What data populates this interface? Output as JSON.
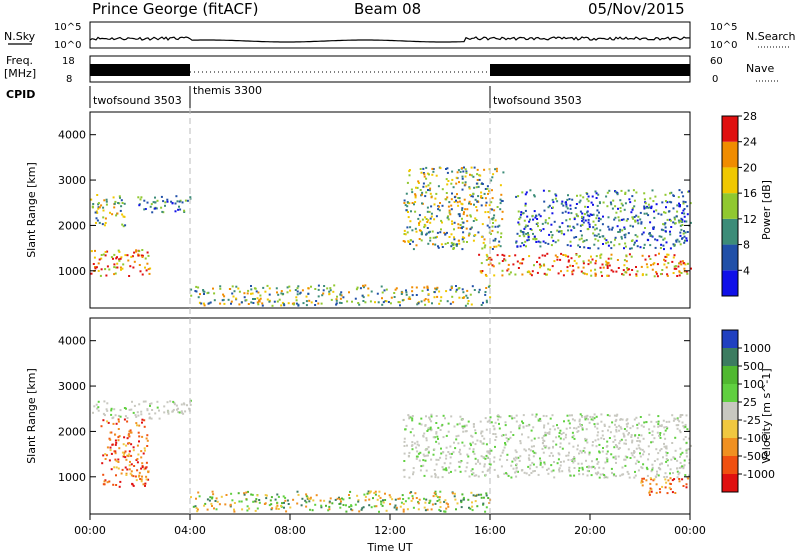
{
  "header": {
    "station": "Prince George (fitACF)",
    "beam": "Beam 08",
    "date": "05/Nov/2015"
  },
  "noise_panel": {
    "left_label": "N.Sky",
    "right_label": "N.Search",
    "left_ticks": [
      "10^5",
      "10^0"
    ],
    "right_ticks": [
      "10^5",
      "10^0"
    ]
  },
  "freq_panel": {
    "left_label_1": "Freq.",
    "left_label_2": "[MHz]",
    "right_label": "Nave",
    "left_ticks": [
      "18",
      "8"
    ],
    "right_ticks": [
      "60",
      "0"
    ]
  },
  "cpid": {
    "label": "CPID",
    "segments": [
      {
        "name": "twofsound 3503",
        "start": 0,
        "end": 4
      },
      {
        "name": "themis 3300",
        "start": 4,
        "end": 16
      },
      {
        "name": "twofsound 3503",
        "start": 16,
        "end": 24
      }
    ]
  },
  "time_axis": {
    "label": "Time UT",
    "ticks": [
      "00:00",
      "04:00",
      "08:00",
      "12:00",
      "16:00",
      "20:00",
      "00:00"
    ]
  },
  "range_axis": {
    "label": "Slant Range [km]",
    "ticks": [
      "1000",
      "2000",
      "3000",
      "4000"
    ]
  },
  "power_scale": {
    "label": "Power [dB]",
    "ticks": [
      "4",
      "8",
      "12",
      "16",
      "20",
      "24",
      "28"
    ],
    "colors": [
      "#1010e8",
      "#2050a8",
      "#3c8c78",
      "#90c830",
      "#f0c800",
      "#f08c00",
      "#e01010"
    ]
  },
  "velocity_scale": {
    "label": "Velocity [m s^-1]",
    "ticks": [
      "1000",
      "500",
      "100",
      "25",
      "-25",
      "-100",
      "-500",
      "-1000"
    ],
    "colors": [
      "#2040c0",
      "#3c7c60",
      "#50b830",
      "#60d040",
      "#c8c8c0",
      "#f0c840",
      "#f09020",
      "#f05010",
      "#e01010"
    ]
  },
  "chart_data": {
    "type": "heatmap",
    "x_range_hours": [
      0,
      24
    ],
    "y_range_km": [
      180,
      4500
    ],
    "cpid_boundaries_hours": [
      4,
      16
    ],
    "power_echo_regions": [
      {
        "t0": 0.0,
        "t1": 2.4,
        "r0": 900,
        "r1": 1500,
        "level": "strong"
      },
      {
        "t0": 0.0,
        "t1": 1.4,
        "r0": 2000,
        "r1": 2700,
        "level": "medium"
      },
      {
        "t0": 1.8,
        "t1": 4.0,
        "r0": 2300,
        "r1": 2700,
        "level": "weak"
      },
      {
        "t0": 4.0,
        "t1": 16.0,
        "r0": 250,
        "r1": 700,
        "level": "medium"
      },
      {
        "t0": 12.5,
        "t1": 16.5,
        "r0": 1500,
        "r1": 3300,
        "level": "medium"
      },
      {
        "t0": 15.5,
        "t1": 24.0,
        "r0": 900,
        "r1": 1400,
        "level": "strong"
      },
      {
        "t0": 17.0,
        "t1": 24.0,
        "r0": 1500,
        "r1": 2800,
        "level": "weak"
      }
    ],
    "velocity_echo_regions": [
      {
        "t0": 0.4,
        "t1": 2.3,
        "r0": 800,
        "r1": 2300,
        "class": "-500"
      },
      {
        "t0": 0.0,
        "t1": 4.0,
        "r0": 2300,
        "r1": 2700,
        "class": "0"
      },
      {
        "t0": 4.0,
        "t1": 16.0,
        "r0": 250,
        "r1": 700,
        "class": "100"
      },
      {
        "t0": 12.5,
        "t1": 24.0,
        "r0": 1000,
        "r1": 2400,
        "class": "0"
      },
      {
        "t0": 22.0,
        "t1": 24.0,
        "r0": 600,
        "r1": 1000,
        "class": "-500"
      }
    ]
  }
}
